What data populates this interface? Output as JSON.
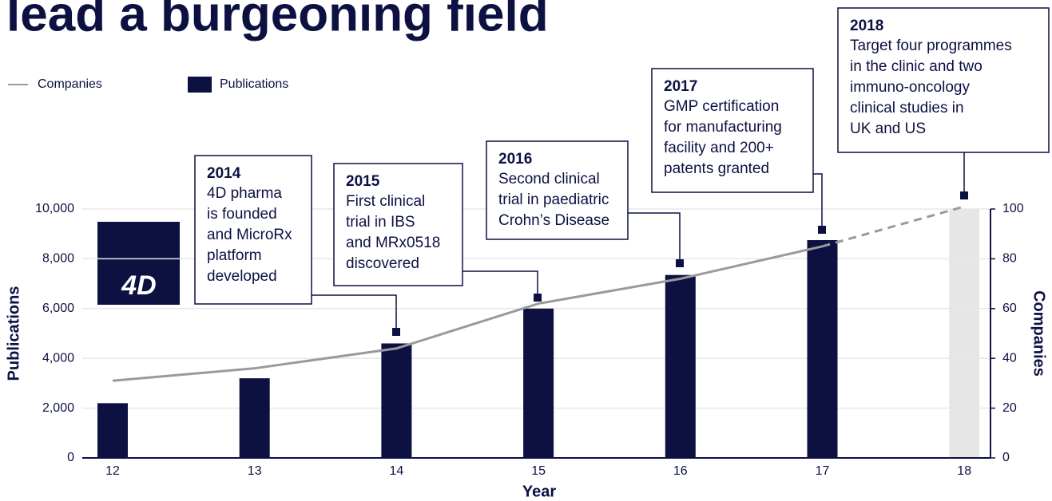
{
  "chart_data": {
    "type": "bar",
    "title": "lead a burgeoning field",
    "logo": "4D",
    "categories": [
      "12",
      "13",
      "14",
      "15",
      "16",
      "17",
      "18"
    ],
    "series": [
      {
        "name": "Publications",
        "type": "bar",
        "color": "#0c1142",
        "axis": "y",
        "values": [
          2200,
          3200,
          4600,
          6000,
          7350,
          8750,
          null
        ]
      },
      {
        "name": "Companies",
        "type": "line",
        "color": "#9a9a9a",
        "axis": "y2",
        "last_segment_style": "dashed",
        "values": [
          31,
          36,
          44,
          62,
          72,
          85,
          101
        ]
      }
    ],
    "x_label": "Year",
    "y_label": "Publications",
    "y2_label": "Companies",
    "ylim": [
      0,
      10000
    ],
    "yticks": [
      0,
      {
        "value": 2000,
        "label": "2,000"
      },
      {
        "value": 4000,
        "label": "4,000"
      },
      {
        "value": 6000,
        "label": "6,000"
      },
      {
        "value": 8000,
        "label": "8,000"
      },
      {
        "value": 10000,
        "label": "10,000"
      }
    ],
    "y2lim": [
      0,
      100
    ],
    "y2ticks": [
      0,
      20,
      40,
      60,
      80,
      100
    ],
    "grid": true,
    "annotations": [
      {
        "title": "2014",
        "lines": [
          "4D pharma",
          "is founded",
          "and MicroRx",
          "platform",
          "developed"
        ]
      },
      {
        "title": "2015",
        "lines": [
          "First clinical",
          "trial in IBS",
          "and MRx0518",
          "discovered"
        ]
      },
      {
        "title": "2016",
        "lines": [
          "Second clinical",
          "trial in paediatric",
          "Crohn’s Disease"
        ]
      },
      {
        "title": "2017",
        "lines": [
          "GMP certification",
          "for manufacturing",
          "facility and 200+",
          "patents granted"
        ]
      },
      {
        "title": "2018",
        "lines": [
          "Target four programmes",
          "in the clinic and two",
          "immuno-oncology",
          "clinical studies in",
          "UK and US"
        ]
      }
    ]
  }
}
